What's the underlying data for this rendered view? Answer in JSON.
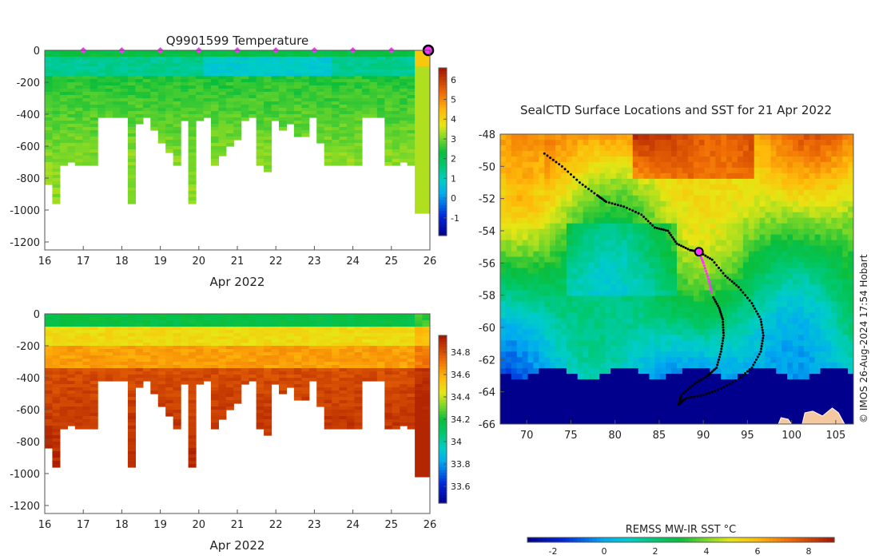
{
  "figure": {
    "credit": "© IMOS 26-Aug-2024 17:54 Hobart"
  },
  "chart_data": [
    {
      "type": "heatmap",
      "panel": "temperature-section",
      "title": "Q9901599  Temperature",
      "xlabel": "Apr 2022",
      "ylabel": "",
      "xlim": [
        16,
        26
      ],
      "ylim": [
        -1250,
        0
      ],
      "x_ticks": [
        "16",
        "17",
        "18",
        "19",
        "20",
        "21",
        "22",
        "23",
        "24",
        "25",
        "26"
      ],
      "y_ticks": [
        "0",
        "-200",
        "-400",
        "-600",
        "-800",
        "-1000",
        "-1200"
      ],
      "colorbar": {
        "min": -1.9,
        "max": 6.6,
        "ticks": [
          "-1",
          "0",
          "1",
          "2",
          "3",
          "4",
          "5",
          "6"
        ]
      },
      "surface_markers_x": [
        17,
        18,
        19,
        20,
        21,
        22,
        23,
        24,
        25
      ],
      "latest_marker_x": 26,
      "colors": {
        "marker": "#ff33ff",
        "latest": "#ff33ff"
      }
    },
    {
      "type": "heatmap",
      "panel": "salinity-section",
      "title": "",
      "xlabel": "Apr 2022",
      "ylabel": "",
      "xlim": [
        16,
        26
      ],
      "ylim": [
        -1250,
        0
      ],
      "x_ticks": [
        "16",
        "17",
        "18",
        "19",
        "20",
        "21",
        "22",
        "23",
        "24",
        "25",
        "26"
      ],
      "y_ticks": [
        "0",
        "-200",
        "-400",
        "-600",
        "-800",
        "-1000",
        "-1200"
      ],
      "colorbar": {
        "min": 33.45,
        "max": 34.95,
        "ticks": [
          "33.6",
          "33.8",
          "34",
          "34.2",
          "34.4",
          "34.6",
          "34.8"
        ]
      }
    },
    {
      "type": "heatmap",
      "panel": "sst-map",
      "title": "SealCTD Surface Locations and SST for 21 Apr 2022",
      "xlabel": "",
      "ylabel": "",
      "xlim": [
        67,
        107
      ],
      "ylim": [
        -66,
        -48
      ],
      "x_ticks": [
        "70",
        "75",
        "80",
        "85",
        "90",
        "95",
        "100",
        "105"
      ],
      "y_ticks": [
        "-48",
        "-50",
        "-52",
        "-54",
        "-56",
        "-58",
        "-60",
        "-62",
        "-64",
        "-66"
      ],
      "colorbar": {
        "label": "REMSS MW-IR SST °C",
        "min": -3,
        "max": 9,
        "ticks": [
          "-2",
          "0",
          "2",
          "4",
          "6",
          "8"
        ]
      },
      "current_position": {
        "lon": 89.5,
        "lat": -55.3
      },
      "colors": {
        "track": "#000000",
        "recent_track": "#ff33ff",
        "land": "#f5c8a0",
        "ice": "#00008c"
      }
    }
  ]
}
